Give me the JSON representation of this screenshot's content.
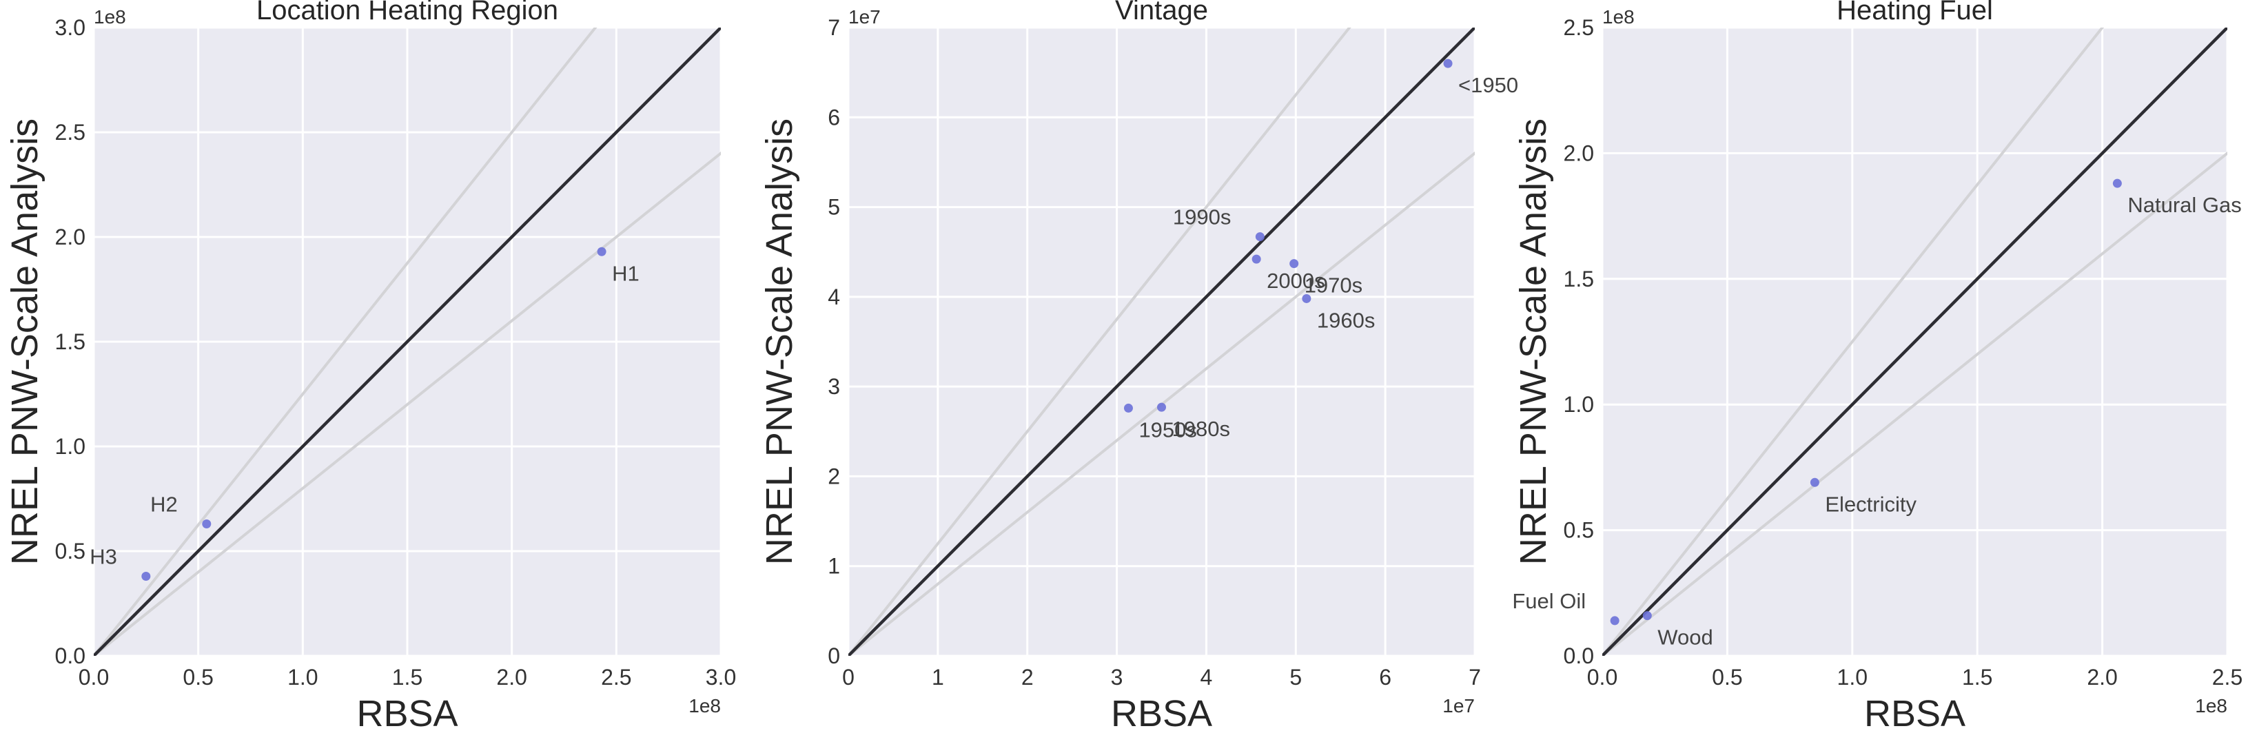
{
  "colors": {
    "plot_background": "#eaeaf2",
    "grid": "#ffffff",
    "identity_line": "#2d2d33",
    "ratio_lines": "#d3d3d6",
    "points": "#6c71d8"
  },
  "chart_data": [
    {
      "type": "scatter",
      "title": "Location Heating Region",
      "xlabel": "RBSA",
      "ylabel": "NREL PNW-Scale Analysis",
      "x_offset_label": "1e8",
      "y_offset_label": "1e8",
      "xlim": [
        0,
        3.0
      ],
      "ylim": [
        0,
        3.0
      ],
      "xticks": [
        0,
        0.5,
        1.0,
        1.5,
        2.0,
        2.5,
        3.0
      ],
      "yticks": [
        0,
        0.5,
        1.0,
        1.5,
        2.0,
        2.5,
        3.0
      ],
      "xtick_labels": [
        "0.0",
        "0.5",
        "1.0",
        "1.5",
        "2.0",
        "2.5",
        "3.0"
      ],
      "ytick_labels": [
        "0.0",
        "0.5",
        "1.0",
        "1.5",
        "2.0",
        "2.5",
        "3.0"
      ],
      "grid": true,
      "reference_lines": [
        {
          "slope": 1.0,
          "style": "identity"
        },
        {
          "slope": 1.25,
          "style": "ratio"
        },
        {
          "slope": 0.8,
          "style": "ratio"
        }
      ],
      "points": [
        {
          "label": "H1",
          "x": 2.43,
          "y": 1.93,
          "label_pos": "below-right"
        },
        {
          "label": "H2",
          "x": 0.54,
          "y": 0.63,
          "label_pos": "above-left"
        },
        {
          "label": "H3",
          "x": 0.25,
          "y": 0.38,
          "label_pos": "above-left"
        }
      ]
    },
    {
      "type": "scatter",
      "title": "Vintage",
      "xlabel": "RBSA",
      "ylabel": "NREL PNW-Scale Analysis",
      "x_offset_label": "1e7",
      "y_offset_label": "1e7",
      "xlim": [
        0,
        7
      ],
      "ylim": [
        0,
        7
      ],
      "xticks": [
        0,
        1,
        2,
        3,
        4,
        5,
        6,
        7
      ],
      "yticks": [
        0,
        1,
        2,
        3,
        4,
        5,
        6,
        7
      ],
      "xtick_labels": [
        "0",
        "1",
        "2",
        "3",
        "4",
        "5",
        "6",
        "7"
      ],
      "ytick_labels": [
        "0",
        "1",
        "2",
        "3",
        "4",
        "5",
        "6",
        "7"
      ],
      "grid": true,
      "reference_lines": [
        {
          "slope": 1.0,
          "style": "identity"
        },
        {
          "slope": 1.25,
          "style": "ratio"
        },
        {
          "slope": 0.8,
          "style": "ratio"
        }
      ],
      "points": [
        {
          "label": "<1950",
          "x": 6.7,
          "y": 6.6,
          "label_pos": "below-right"
        },
        {
          "label": "1990s",
          "x": 4.6,
          "y": 4.67,
          "label_pos": "above-left"
        },
        {
          "label": "2000s",
          "x": 4.56,
          "y": 4.42,
          "label_pos": "below-right"
        },
        {
          "label": "1970s",
          "x": 4.98,
          "y": 4.37,
          "label_pos": "below-right"
        },
        {
          "label": "1960s",
          "x": 5.12,
          "y": 3.98,
          "label_pos": "below-right"
        },
        {
          "label": "1950s",
          "x": 3.13,
          "y": 2.76,
          "label_pos": "below-right"
        },
        {
          "label": "1980s",
          "x": 3.5,
          "y": 2.77,
          "label_pos": "below-right"
        }
      ]
    },
    {
      "type": "scatter",
      "title": "Heating Fuel",
      "xlabel": "RBSA",
      "ylabel": "NREL PNW-Scale Analysis",
      "x_offset_label": "1e8",
      "y_offset_label": "1e8",
      "xlim": [
        0,
        2.5
      ],
      "ylim": [
        0,
        2.5
      ],
      "xticks": [
        0,
        0.5,
        1.0,
        1.5,
        2.0,
        2.5
      ],
      "yticks": [
        0,
        0.5,
        1.0,
        1.5,
        2.0,
        2.5
      ],
      "xtick_labels": [
        "0.0",
        "0.5",
        "1.0",
        "1.5",
        "2.0",
        "2.5"
      ],
      "ytick_labels": [
        "0.0",
        "0.5",
        "1.0",
        "1.5",
        "2.0",
        "2.5"
      ],
      "grid": true,
      "reference_lines": [
        {
          "slope": 1.0,
          "style": "identity"
        },
        {
          "slope": 1.25,
          "style": "ratio"
        },
        {
          "slope": 0.8,
          "style": "ratio"
        }
      ],
      "points": [
        {
          "label": "Natural Gas",
          "x": 2.06,
          "y": 1.88,
          "label_pos": "below-right"
        },
        {
          "label": "Electricity",
          "x": 0.85,
          "y": 0.69,
          "label_pos": "below-right"
        },
        {
          "label": "Fuel Oil",
          "x": 0.05,
          "y": 0.14,
          "label_pos": "above-left"
        },
        {
          "label": "Wood",
          "x": 0.18,
          "y": 0.16,
          "label_pos": "below-right"
        }
      ]
    }
  ]
}
